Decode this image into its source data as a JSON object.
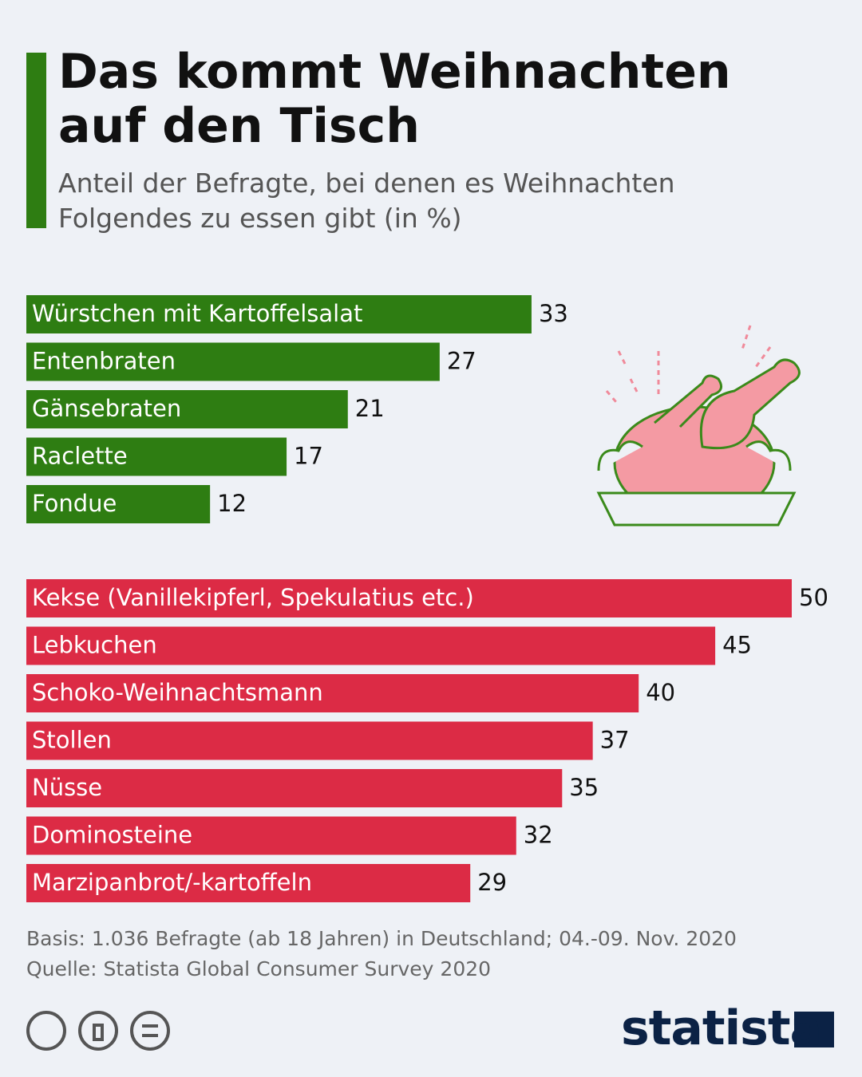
{
  "title": "Das kommt Weihnachten auf den Tisch",
  "subtitle": "Anteil der Befragte, bei denen es Weihnachten Folgendes zu essen gibt (in %)",
  "chart_data": [
    {
      "type": "bar",
      "color": "#2e7d12",
      "categories": [
        "Würstchen mit Kartoffelsalat",
        "Entenbraten",
        "Gänsebraten",
        "Raclette",
        "Fondue"
      ],
      "values": [
        33,
        27,
        21,
        17,
        12
      ]
    },
    {
      "type": "bar",
      "color": "#dc2b45",
      "categories": [
        "Kekse (Vanillekipferl, Spekulatius etc.)",
        "Lebkuchen",
        "Schoko-Weihnachtsmann",
        "Stollen",
        "Nüsse",
        "Dominosteine",
        "Marzipanbrot/-kartoffeln"
      ],
      "values": [
        50,
        45,
        40,
        37,
        35,
        32,
        29
      ]
    }
  ],
  "notes": [
    "Basis: 1.036 Befragte (ab 18 Jahren) in Deutschland; 04.-09. Nov. 2020",
    "Quelle: Statista Global Consumer Survey 2020"
  ],
  "brand": "statista"
}
